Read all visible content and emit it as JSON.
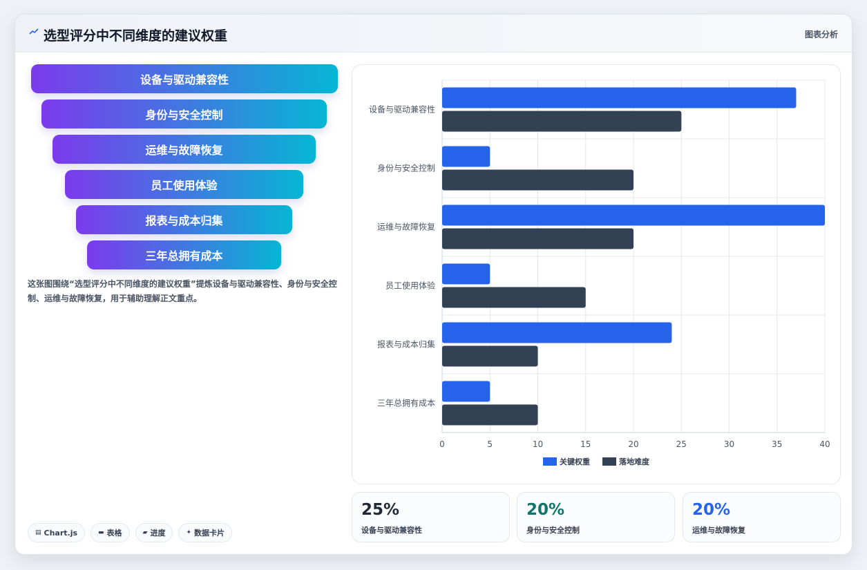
{
  "header": {
    "icon": "trend-icon",
    "title": "选型评分中不同维度的建议权重",
    "tag": "图表分析"
  },
  "funnel": {
    "items": [
      "设备与驱动兼容性",
      "身份与安全控制",
      "运维与故障恢复",
      "员工使用体验",
      "报表与成本归集",
      "三年总拥有成本"
    ],
    "gradient": [
      "#7c3aed",
      "#06b6d4"
    ]
  },
  "description": "这张图围绕“选型评分中不同维度的建议权重”提炼设备与驱动兼容性、身份与安全控制、运维与故障恢复，用于辅助理解正文重点。",
  "chips": [
    {
      "icon": "chart-icon",
      "label": "Chart.js"
    },
    {
      "icon": "table-icon",
      "label": "表格"
    },
    {
      "icon": "progress-icon",
      "label": "进度"
    },
    {
      "icon": "sparkle-icon",
      "label": "数据卡片"
    }
  ],
  "chart_data": {
    "type": "bar",
    "orientation": "horizontal",
    "categories": [
      "设备与驱动兼容性",
      "身份与安全控制",
      "运维与故障恢复",
      "员工使用体验",
      "报表与成本归集",
      "三年总拥有成本"
    ],
    "series": [
      {
        "name": "关键权重",
        "color": "#2563eb",
        "values": [
          37,
          5,
          40,
          5,
          24,
          5
        ]
      },
      {
        "name": "落地难度",
        "color": "#334155",
        "values": [
          25,
          20,
          20,
          15,
          10,
          10
        ]
      }
    ],
    "xlim": [
      0,
      40
    ],
    "xticks": [
      0,
      5,
      10,
      15,
      20,
      25,
      30,
      35,
      40
    ],
    "grid": true,
    "legend": "bottom"
  },
  "stats": [
    {
      "value": "25%",
      "label": "设备与驱动兼容性",
      "color": "#1f2937"
    },
    {
      "value": "20%",
      "label": "身份与安全控制",
      "color": "#0f766e"
    },
    {
      "value": "20%",
      "label": "运维与故障恢复",
      "color": "#2563eb"
    }
  ]
}
